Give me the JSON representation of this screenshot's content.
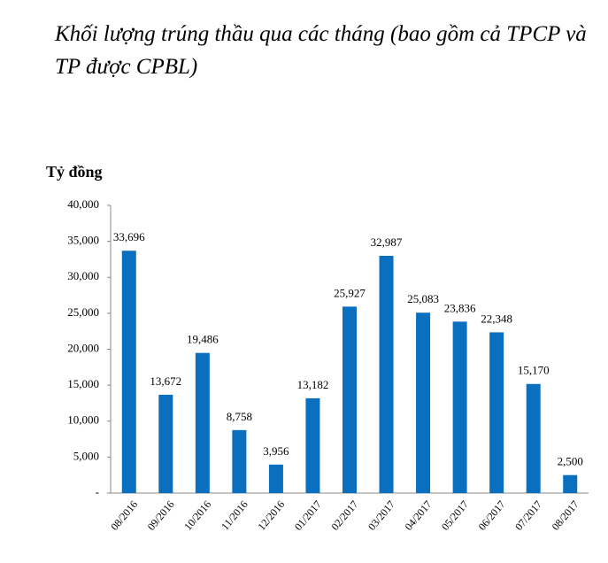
{
  "chart_data": {
    "type": "bar",
    "title": "Khối lượng trúng thầu qua các tháng (bao gồm cả TPCP và TP được CPBL)",
    "y_label": "Tỷ đồng",
    "categories": [
      "08/2016",
      "09/2016",
      "10/2016",
      "11/2016",
      "12/2016",
      "01/2017",
      "02/2017",
      "03/2017",
      "04/2017",
      "05/2017",
      "06/2017",
      "07/2017",
      "08/2017"
    ],
    "values": [
      33696,
      13672,
      19486,
      8758,
      3956,
      13182,
      25927,
      32987,
      25083,
      23836,
      22348,
      15170,
      2500
    ],
    "value_labels": [
      "33,696",
      "13,672",
      "19,486",
      "8,758",
      "3,956",
      "13,182",
      "25,927",
      "32,987",
      "25,083",
      "23,836",
      "22,348",
      "15,170",
      "2,500"
    ],
    "color": "#0b6fc0",
    "ylim": [
      0,
      40000
    ],
    "yticks": [
      {
        "value": 0,
        "label": "-"
      },
      {
        "value": 5000,
        "label": "5,000"
      },
      {
        "value": 10000,
        "label": "10,000"
      },
      {
        "value": 15000,
        "label": "15,000"
      },
      {
        "value": 20000,
        "label": "20,000"
      },
      {
        "value": 25000,
        "label": "25,000"
      },
      {
        "value": 30000,
        "label": "30,000"
      },
      {
        "value": 35000,
        "label": "35,000"
      },
      {
        "value": 40000,
        "label": "40,000"
      }
    ],
    "grid": false
  }
}
